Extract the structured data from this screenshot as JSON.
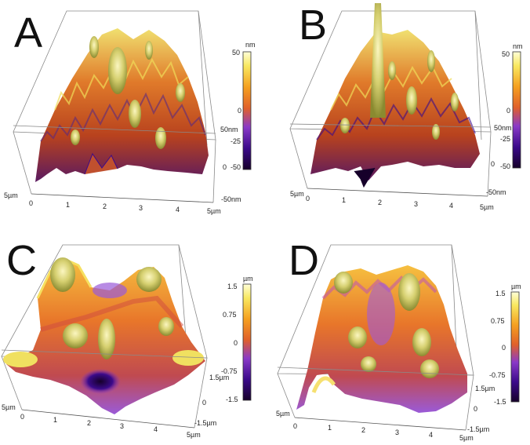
{
  "colors": {
    "colormap": [
      "#16002a",
      "#3b0a8a",
      "#8a3ac8",
      "#e0602a",
      "#f5a020",
      "#f8e860",
      "#ffffd8"
    ]
  },
  "panels": [
    {
      "label": "A",
      "x_ticks": [
        "0",
        "1",
        "2",
        "3",
        "4",
        "5µm"
      ],
      "depth_tick_near": "5µm",
      "z_top": "50nm",
      "z_bottom": "-50nm",
      "z_zero": "0",
      "z_mid": "-25",
      "cbar_unit": "nm",
      "cbar_ticks": [
        "50",
        "",
        "-25",
        "-50"
      ],
      "cbar_zero": "0"
    },
    {
      "label": "B",
      "x_ticks": [
        "0",
        "1",
        "2",
        "3",
        "4",
        "5µm"
      ],
      "depth_tick_near": "5µm",
      "z_top": "50nm",
      "z_bottom": "-50nm",
      "z_zero": "0",
      "z_mid": "-25",
      "cbar_unit": "nm",
      "cbar_ticks": [
        "50",
        "",
        "-25",
        "-50"
      ],
      "cbar_zero": "0"
    },
    {
      "label": "C",
      "x_ticks": [
        "0",
        "1",
        "2",
        "3",
        "4",
        "5µm"
      ],
      "depth_tick_near": "5µm",
      "z_top": "1.5µm",
      "z_bottom": "-1.5µm",
      "z_zero": "0",
      "cbar_unit": "µm",
      "cbar_ticks": [
        "1.5",
        "0.75",
        "0",
        "-0.75",
        "-1.5"
      ]
    },
    {
      "label": "D",
      "x_ticks": [
        "0",
        "1",
        "2",
        "3",
        "4",
        "5µm"
      ],
      "depth_tick_near": "5µm",
      "z_top": "1.5µm",
      "z_bottom": "-1.5µm",
      "z_zero": "0",
      "cbar_unit": "µm",
      "cbar_ticks": [
        "1.5",
        "0.75",
        "0",
        "-0.75",
        "-1.5"
      ]
    }
  ]
}
